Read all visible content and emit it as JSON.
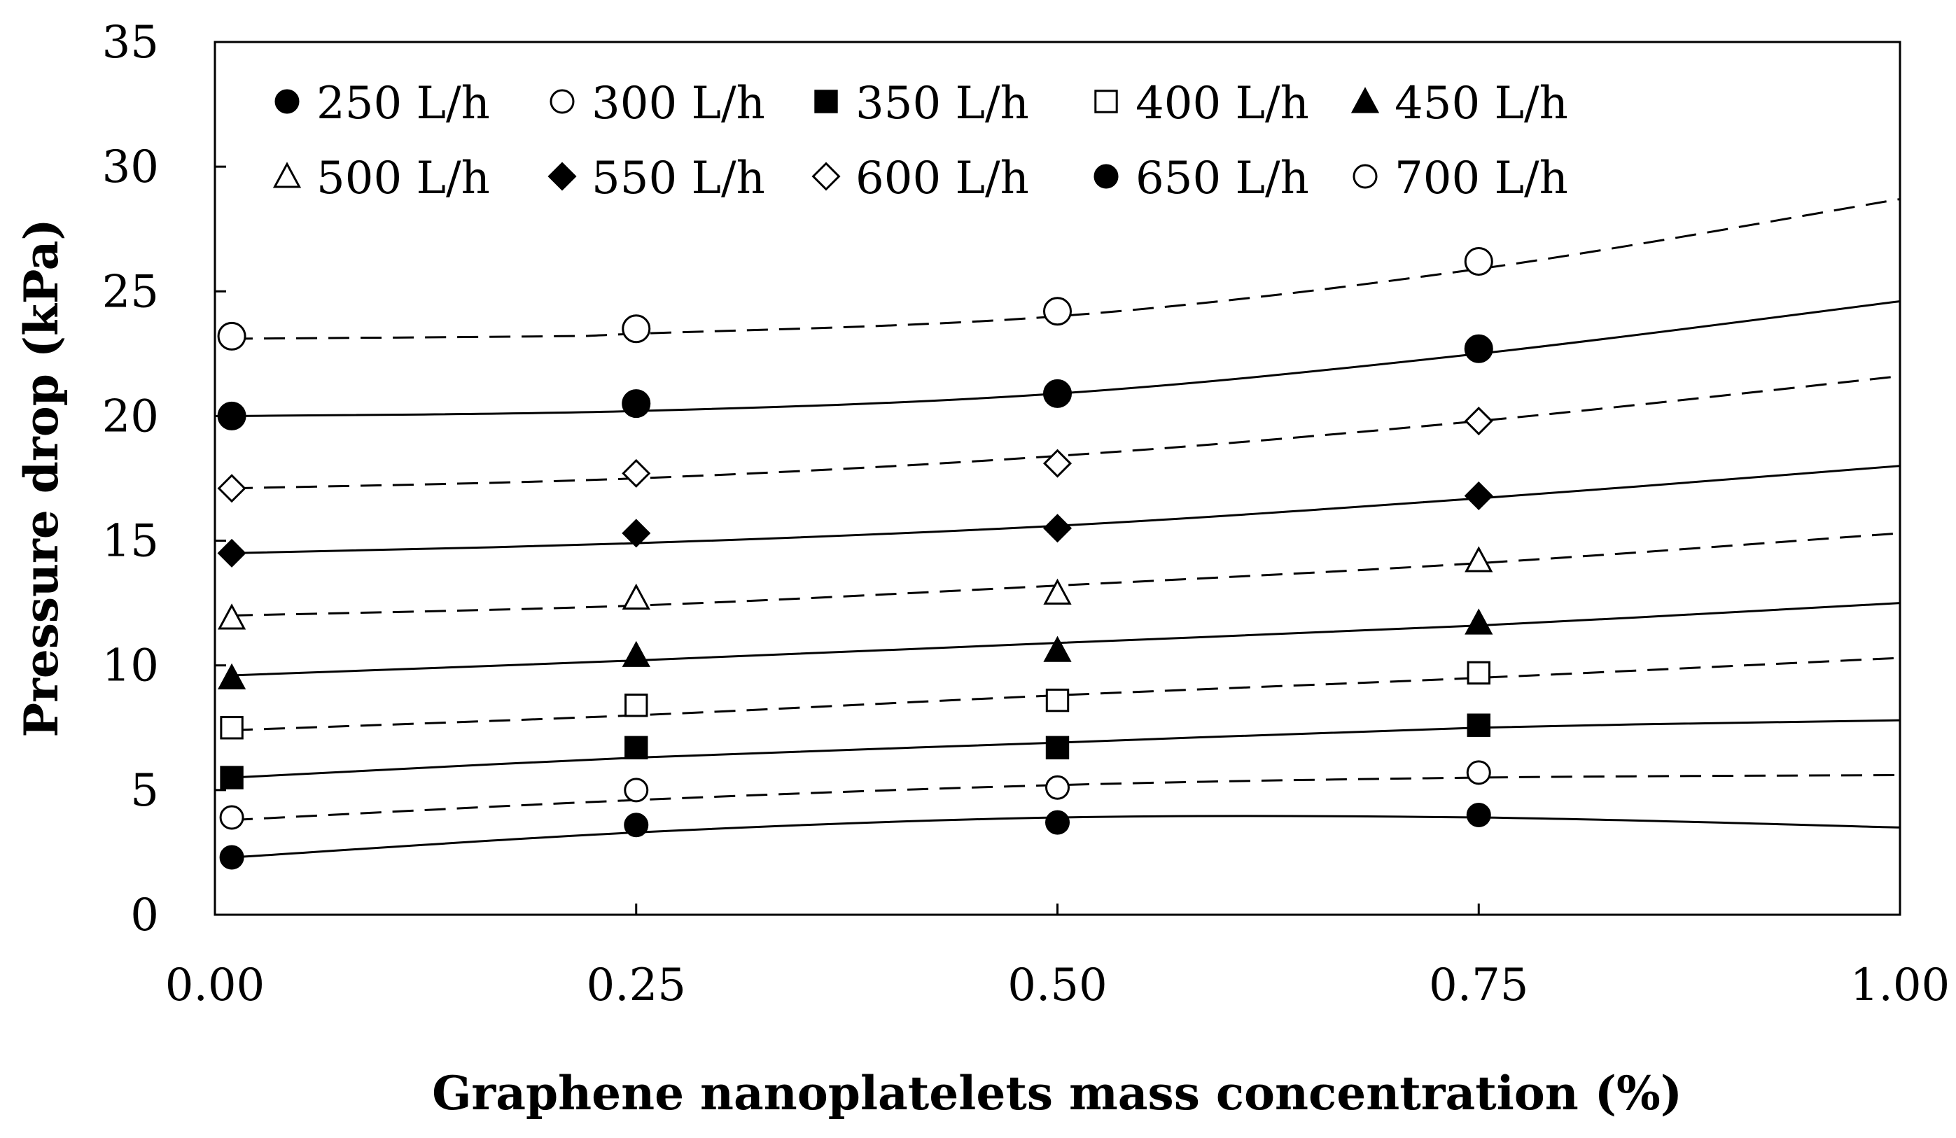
{
  "chart_data": {
    "type": "scatter",
    "title": "",
    "xlabel": "Graphene nanoplatelets mass concentration (%)",
    "ylabel": "Pressure drop (kPa)",
    "xlim": [
      0,
      1
    ],
    "ylim": [
      0,
      35
    ],
    "x_ticks": [
      "0.00",
      "0.25",
      "0.50",
      "0.75",
      "1.00"
    ],
    "y_ticks": [
      "0",
      "5",
      "10",
      "15",
      "20",
      "25",
      "30",
      "35"
    ],
    "x_tick_values": [
      0,
      0.25,
      0.5,
      0.75,
      1.0
    ],
    "y_tick_values": [
      0,
      5,
      10,
      15,
      20,
      25,
      30,
      35
    ],
    "grid": false,
    "legend_position": "top-left",
    "legend_columns": 5,
    "x": [
      0.01,
      0.25,
      0.5,
      0.75
    ],
    "series": [
      {
        "name": "250 L/h",
        "marker": "filled-circle",
        "line": "solid",
        "values": [
          2.3,
          3.6,
          3.7,
          4.0
        ],
        "fit_x": [
          0.01,
          0.25,
          0.5,
          0.75,
          1.0
        ],
        "fit_y": [
          2.3,
          3.3,
          3.9,
          3.9,
          3.5
        ]
      },
      {
        "name": "300 L/h",
        "marker": "open-circle",
        "line": "dashed",
        "values": [
          3.9,
          5.0,
          5.1,
          5.7
        ],
        "fit_x": [
          0.01,
          0.25,
          0.5,
          0.75,
          1.0
        ],
        "fit_y": [
          3.8,
          4.6,
          5.2,
          5.5,
          5.6
        ]
      },
      {
        "name": "350 L/h",
        "marker": "filled-square",
        "line": "solid",
        "values": [
          5.5,
          6.7,
          6.7,
          7.6
        ],
        "fit_x": [
          0.01,
          0.25,
          0.5,
          0.75,
          1.0
        ],
        "fit_y": [
          5.5,
          6.3,
          6.9,
          7.5,
          7.8
        ]
      },
      {
        "name": "400 L/h",
        "marker": "open-square",
        "line": "dashed",
        "values": [
          7.5,
          8.4,
          8.6,
          9.7
        ],
        "fit_x": [
          0.01,
          0.25,
          0.5,
          0.75,
          1.0
        ],
        "fit_y": [
          7.4,
          8.0,
          8.8,
          9.5,
          10.3
        ]
      },
      {
        "name": "450 L/h",
        "marker": "filled-triangle",
        "line": "solid",
        "values": [
          9.5,
          10.4,
          10.6,
          11.7
        ],
        "fit_x": [
          0.01,
          0.25,
          0.5,
          0.75,
          1.0
        ],
        "fit_y": [
          9.6,
          10.2,
          10.9,
          11.6,
          12.5
        ]
      },
      {
        "name": "500 L/h",
        "marker": "open-triangle",
        "line": "dashed",
        "values": [
          11.9,
          12.7,
          12.9,
          14.2
        ],
        "fit_x": [
          0.01,
          0.25,
          0.5,
          0.75,
          1.0
        ],
        "fit_y": [
          12.0,
          12.4,
          13.2,
          14.1,
          15.3
        ]
      },
      {
        "name": "550 L/h",
        "marker": "filled-diamond",
        "line": "solid",
        "values": [
          14.5,
          15.3,
          15.5,
          16.8
        ],
        "fit_x": [
          0.01,
          0.25,
          0.5,
          0.75,
          1.0
        ],
        "fit_y": [
          14.5,
          14.9,
          15.6,
          16.7,
          18.0
        ]
      },
      {
        "name": "600 L/h",
        "marker": "open-diamond",
        "line": "dashed",
        "values": [
          17.1,
          17.7,
          18.1,
          19.8
        ],
        "fit_x": [
          0.01,
          0.25,
          0.5,
          0.75,
          1.0
        ],
        "fit_y": [
          17.1,
          17.5,
          18.4,
          19.8,
          21.6
        ]
      },
      {
        "name": "650 L/h",
        "marker": "filled-circle-large",
        "line": "solid",
        "values": [
          20.0,
          20.5,
          20.9,
          22.7
        ],
        "fit_x": [
          0.01,
          0.25,
          0.5,
          0.75,
          1.0
        ],
        "fit_y": [
          20.0,
          20.2,
          20.9,
          22.5,
          24.6
        ]
      },
      {
        "name": "700 L/h",
        "marker": "open-circle-large",
        "line": "dashed",
        "values": [
          23.2,
          23.5,
          24.2,
          26.2
        ],
        "fit_x": [
          0.01,
          0.2,
          0.25,
          0.5,
          0.75,
          1.0
        ],
        "fit_y": [
          23.1,
          23.2,
          23.3,
          24.0,
          25.9,
          28.7
        ]
      }
    ]
  }
}
